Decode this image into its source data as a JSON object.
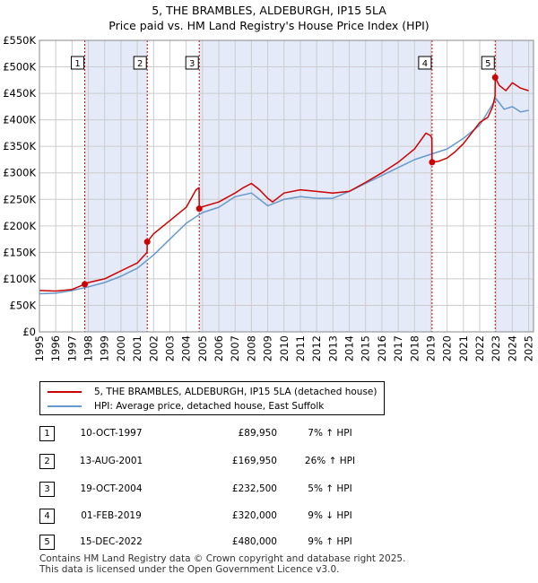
{
  "title_line1": "5, THE BRAMBLES, ALDEBURGH, IP15 5LA",
  "title_line2": "Price paid vs. HM Land Registry's House Price Index (HPI)",
  "colors": {
    "property": "#cc0000",
    "hpi": "#6699cc",
    "shade": "#dde5f5",
    "grid": "#cccccc"
  },
  "legend": {
    "property_label": "5, THE BRAMBLES, ALDEBURGH, IP15 5LA (detached house)",
    "hpi_label": "HPI: Average price, detached house, East Suffolk"
  },
  "transactions": [
    {
      "num": "1",
      "date": "10-OCT-1997",
      "price": "£89,950",
      "hpi": "7% ↑ HPI"
    },
    {
      "num": "2",
      "date": "13-AUG-2001",
      "price": "£169,950",
      "hpi": "26% ↑ HPI"
    },
    {
      "num": "3",
      "date": "19-OCT-2004",
      "price": "£232,500",
      "hpi": "5% ↑ HPI"
    },
    {
      "num": "4",
      "date": "01-FEB-2019",
      "price": "£320,000",
      "hpi": "9% ↓ HPI"
    },
    {
      "num": "5",
      "date": "15-DEC-2022",
      "price": "£480,000",
      "hpi": "9% ↑ HPI"
    }
  ],
  "footer_line1": "Contains HM Land Registry data © Crown copyright and database right 2025.",
  "footer_line2": "This data is licensed under the Open Government Licence v3.0.",
  "chart_data": {
    "type": "line",
    "title": "5, THE BRAMBLES, ALDEBURGH, IP15 5LA",
    "subtitle": "Price paid vs. HM Land Registry's House Price Index (HPI)",
    "xlim": [
      1995,
      2025.3
    ],
    "ylim": [
      0,
      550000
    ],
    "x_ticks": [
      1995,
      1996,
      1997,
      1998,
      1999,
      2000,
      2001,
      2002,
      2003,
      2004,
      2005,
      2006,
      2007,
      2008,
      2009,
      2010,
      2011,
      2012,
      2013,
      2014,
      2015,
      2016,
      2017,
      2018,
      2019,
      2020,
      2021,
      2022,
      2023,
      2024,
      2025
    ],
    "y_ticks": [
      0,
      50000,
      100000,
      150000,
      200000,
      250000,
      300000,
      350000,
      400000,
      450000,
      500000,
      550000
    ],
    "y_tick_labels": [
      "£0",
      "£50K",
      "£100K",
      "£150K",
      "£200K",
      "£250K",
      "£300K",
      "£350K",
      "£400K",
      "£450K",
      "£500K",
      "£550K"
    ],
    "grid": true,
    "shaded_periods": [
      [
        1997.78,
        2001.61
      ],
      [
        2004.8,
        2019.08
      ],
      [
        2022.95,
        2025.3
      ]
    ],
    "sales": [
      {
        "label": "1",
        "x": 1997.78,
        "y": 89950
      },
      {
        "label": "2",
        "x": 2001.61,
        "y": 169950
      },
      {
        "label": "3",
        "x": 2004.8,
        "y": 232500
      },
      {
        "label": "4",
        "x": 2019.08,
        "y": 320000
      },
      {
        "label": "5",
        "x": 2022.95,
        "y": 480000
      }
    ],
    "series": [
      {
        "name": "5, THE BRAMBLES, ALDEBURGH, IP15 5LA (detached house)",
        "x": [
          1995,
          1996,
          1997,
          1997.78,
          1998,
          1999,
          2000,
          2001,
          2001.6,
          2001.61,
          2002,
          2003,
          2004,
          2004.6,
          2004.79,
          2004.8,
          2005,
          2006,
          2007,
          2007.5,
          2008,
          2008.5,
          2009,
          2009.3,
          2010,
          2011,
          2012,
          2013,
          2014,
          2015,
          2016,
          2017,
          2018,
          2018.7,
          2019.0,
          2019.07,
          2019.08,
          2019.5,
          2020,
          2020.5,
          2021,
          2021.5,
          2022,
          2022.5,
          2022.8,
          2022.94,
          2022.95,
          2023.2,
          2023.6,
          2024,
          2024.5,
          2025
        ],
        "values": [
          78000,
          77000,
          80000,
          89950,
          93000,
          100000,
          115000,
          130000,
          150000,
          169950,
          185000,
          210000,
          235000,
          268000,
          272000,
          232500,
          236000,
          245000,
          262000,
          272000,
          280000,
          268000,
          252000,
          245000,
          262000,
          268000,
          265000,
          262000,
          265000,
          282000,
          300000,
          320000,
          345000,
          375000,
          370000,
          365000,
          320000,
          322000,
          328000,
          340000,
          355000,
          375000,
          395000,
          405000,
          425000,
          445000,
          480000,
          465000,
          455000,
          470000,
          460000,
          455000
        ]
      },
      {
        "name": "HPI: Average price, detached house, East Suffolk",
        "x": [
          1995,
          1996,
          1997,
          1998,
          1999,
          2000,
          2001,
          2002,
          2003,
          2004,
          2005,
          2006,
          2007,
          2008,
          2009,
          2010,
          2011,
          2012,
          2013,
          2014,
          2015,
          2016,
          2017,
          2018,
          2019,
          2020,
          2021,
          2022,
          2022.6,
          2023,
          2023.5,
          2024,
          2024.5,
          2025
        ],
        "values": [
          72000,
          73000,
          78000,
          85000,
          93000,
          105000,
          120000,
          145000,
          175000,
          205000,
          225000,
          235000,
          255000,
          262000,
          238000,
          250000,
          255000,
          252000,
          252000,
          265000,
          280000,
          295000,
          310000,
          325000,
          335000,
          345000,
          365000,
          390000,
          420000,
          440000,
          420000,
          425000,
          415000,
          418000
        ]
      }
    ]
  }
}
